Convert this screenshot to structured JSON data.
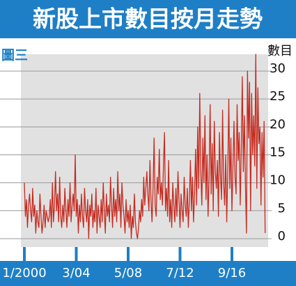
{
  "chart_data": {
    "type": "line",
    "title": "新股上市數目按月走勢",
    "subtitle": "圖三",
    "y_label": "數目",
    "categories": [
      "1/2000",
      null,
      null,
      null,
      null,
      null,
      null,
      null,
      null,
      null,
      null,
      null,
      null,
      null,
      null,
      null,
      null,
      null,
      null,
      null,
      null,
      null,
      null,
      null,
      null,
      null,
      null,
      null,
      null,
      null,
      null,
      null,
      null,
      null,
      null,
      null,
      null,
      null,
      null,
      null,
      null,
      null,
      null,
      null,
      null,
      null,
      null,
      null,
      null,
      null,
      "3/04",
      null,
      null,
      null,
      null,
      null,
      null,
      null,
      null,
      null,
      null,
      null,
      null,
      null,
      null,
      null,
      null,
      null,
      null,
      null,
      null,
      null,
      null,
      null,
      null,
      null,
      null,
      null,
      null,
      null,
      null,
      null,
      null,
      null,
      null,
      null,
      null,
      null,
      null,
      null,
      null,
      null,
      null,
      null,
      null,
      null,
      null,
      null,
      null,
      null,
      "5/08",
      null,
      null,
      null,
      null,
      null,
      null,
      null,
      null,
      null,
      null,
      null,
      null,
      null,
      null,
      null,
      null,
      null,
      null,
      null,
      null,
      null,
      null,
      null,
      null,
      null,
      null,
      null,
      null,
      null,
      null,
      null,
      null,
      null,
      null,
      null,
      null,
      null,
      null,
      null,
      null,
      null,
      null,
      null,
      null,
      null,
      null,
      null,
      null,
      null,
      "7/12",
      null,
      null,
      null,
      null,
      null,
      null,
      null,
      null,
      null,
      null,
      null,
      null,
      null,
      null,
      null,
      null,
      null,
      null,
      null,
      null,
      null,
      null,
      null,
      null,
      null,
      null,
      null,
      null,
      null,
      null,
      null,
      null,
      null,
      null,
      null,
      null,
      null,
      null,
      null,
      null,
      null,
      null,
      null,
      null,
      null,
      null,
      null,
      null,
      null,
      "9/16",
      null,
      null,
      null,
      null,
      null,
      null,
      null,
      null,
      null,
      null,
      null,
      null,
      null,
      null,
      null,
      null,
      null,
      null,
      null,
      null,
      null,
      null,
      null,
      null,
      null,
      null,
      null,
      null,
      null,
      null,
      null,
      null
    ],
    "values": [
      10,
      4,
      7,
      2,
      6,
      8,
      5,
      3,
      9,
      4,
      6,
      1,
      5,
      3,
      2,
      8,
      4,
      1,
      3,
      6,
      2,
      5,
      4,
      3,
      4,
      7,
      2,
      10,
      3,
      6,
      12,
      5,
      8,
      3,
      11,
      4,
      2,
      6,
      3,
      9,
      5,
      2,
      7,
      4,
      10,
      3,
      6,
      8,
      5,
      15,
      4,
      7,
      1,
      6,
      3,
      8,
      4,
      2,
      9,
      5,
      3,
      7,
      0,
      6,
      4,
      8,
      2,
      5,
      3,
      9,
      1,
      6,
      4,
      2,
      7,
      3,
      10,
      5,
      1,
      8,
      4,
      6,
      3,
      11,
      6,
      2,
      9,
      4,
      7,
      3,
      12,
      5,
      8,
      2,
      10,
      6,
      4,
      1,
      7,
      3,
      5,
      2,
      6,
      0,
      4,
      2,
      8,
      3,
      1,
      0,
      2,
      5,
      3,
      7,
      4,
      11,
      6,
      9,
      12,
      8,
      5,
      14,
      7,
      3,
      9,
      18,
      6,
      4,
      11,
      8,
      16,
      7,
      10,
      6,
      13,
      19,
      5,
      9,
      4,
      14,
      3,
      7,
      2,
      10,
      6,
      3,
      9,
      4,
      12,
      7,
      2,
      8,
      5,
      3,
      11,
      6,
      4,
      9,
      2,
      7,
      14,
      5,
      11,
      3,
      8,
      16,
      6,
      20,
      9,
      26,
      12,
      6,
      18,
      10,
      22,
      7,
      15,
      4,
      11,
      24,
      8,
      17,
      5,
      21,
      12,
      9,
      14,
      4,
      19,
      11,
      7,
      23,
      10,
      6,
      15,
      3,
      12,
      25,
      9,
      18,
      5,
      13,
      21,
      11,
      8,
      24,
      14,
      19,
      6,
      16,
      29,
      12,
      22,
      10,
      1,
      30,
      18,
      28,
      5,
      26,
      15,
      22,
      13,
      33,
      9,
      27,
      17,
      20,
      6,
      19,
      11,
      21,
      1
    ],
    "color": "#c62a1f",
    "ylim": [
      -1.5,
      33
    ],
    "yticks": [
      0,
      5,
      10,
      15,
      20,
      25,
      30
    ],
    "grid": true
  }
}
